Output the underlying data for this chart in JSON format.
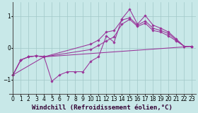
{
  "xlabel": "Windchill (Refroidissement éolien,°C)",
  "background_color": "#c8e8e8",
  "grid_color": "#a0c8c8",
  "line_color": "#993399",
  "lines": [
    {
      "x": [
        0,
        1,
        2,
        3,
        4,
        5,
        6,
        7,
        8,
        9,
        10,
        11,
        12,
        13,
        14,
        15,
        16,
        17,
        18,
        19,
        20,
        21,
        22,
        23
      ],
      "y": [
        -0.85,
        -0.38,
        -0.28,
        -0.25,
        -0.28,
        -1.05,
        -0.85,
        -0.75,
        -0.75,
        -0.75,
        -0.42,
        -0.28,
        0.38,
        0.18,
        0.92,
        1.22,
        0.75,
        1.02,
        0.72,
        0.62,
        0.5,
        0.28,
        0.05,
        0.05
      ]
    },
    {
      "x": [
        0,
        1,
        2,
        3,
        4,
        10,
        11,
        12,
        13,
        14,
        15,
        16,
        17,
        18,
        19,
        20,
        21,
        22,
        23
      ],
      "y": [
        -0.85,
        -0.38,
        -0.28,
        -0.25,
        -0.28,
        0.12,
        0.25,
        0.5,
        0.55,
        0.88,
        0.95,
        0.72,
        0.85,
        0.62,
        0.55,
        0.45,
        0.25,
        0.05,
        0.05
      ]
    },
    {
      "x": [
        0,
        1,
        2,
        3,
        4,
        10,
        11,
        12,
        13,
        14,
        15,
        16,
        17,
        18,
        19,
        20,
        21,
        22,
        23
      ],
      "y": [
        -0.85,
        -0.38,
        -0.28,
        -0.25,
        -0.28,
        -0.05,
        0.08,
        0.22,
        0.35,
        0.75,
        0.9,
        0.68,
        0.78,
        0.55,
        0.5,
        0.38,
        0.22,
        0.05,
        0.05
      ]
    },
    {
      "x": [
        0,
        4,
        23
      ],
      "y": [
        -0.85,
        -0.28,
        0.05
      ]
    }
  ],
  "yticks": [
    -1,
    0,
    1
  ],
  "xticks": [
    0,
    1,
    2,
    3,
    4,
    5,
    6,
    7,
    8,
    9,
    10,
    11,
    12,
    13,
    14,
    15,
    16,
    17,
    18,
    19,
    20,
    21,
    22,
    23
  ],
  "xlim": [
    -0.5,
    23.5
  ],
  "ylim": [
    -1.45,
    1.45
  ],
  "tick_fontsize": 5.5,
  "xlabel_fontsize": 6.5,
  "marker": "D",
  "marker_size": 1.8,
  "linewidth": 0.75
}
